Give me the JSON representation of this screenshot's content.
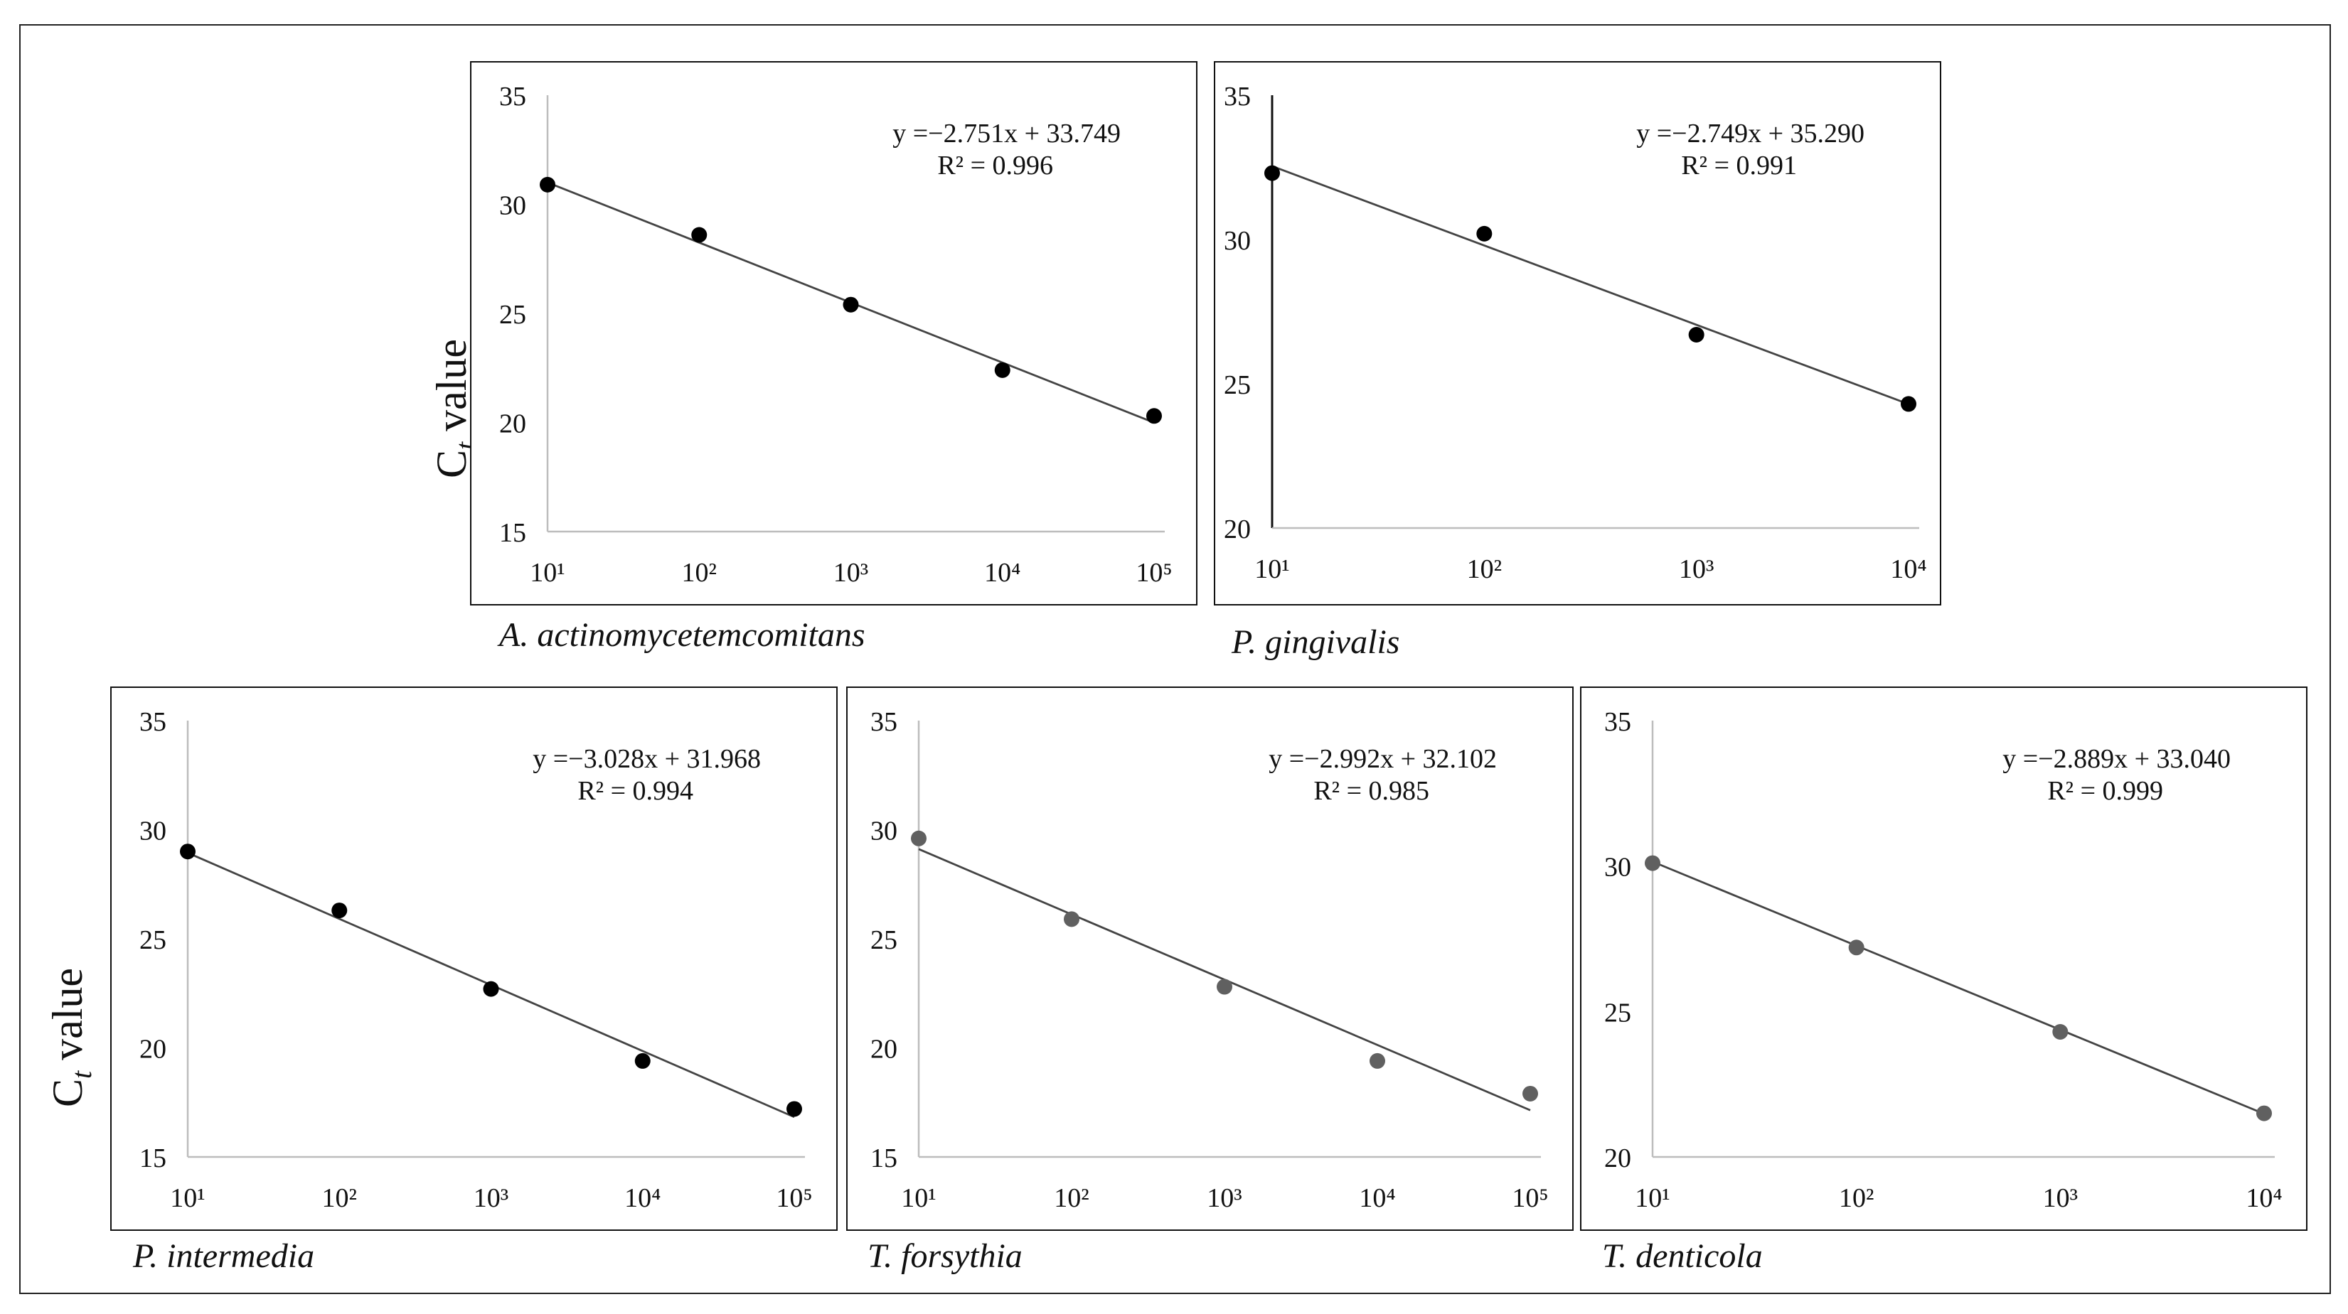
{
  "y_axis_label": {
    "main": "C",
    "subscript": "t",
    "rest": " value"
  },
  "chart_data": [
    {
      "type": "scatter",
      "id": "aa",
      "species": "A. actinomycetemcomitans",
      "equation": "y =−2.751x + 33.749",
      "r_squared": "R² = 0.996",
      "x_ticks": [
        "10¹",
        "10²",
        "10³",
        "10⁴",
        "10⁵"
      ],
      "xlim": [
        1,
        5
      ],
      "ylim": [
        15,
        35
      ],
      "y_ticks": [
        15,
        20,
        25,
        30,
        35
      ],
      "x": [
        1,
        2,
        3,
        4,
        5
      ],
      "y": [
        30.9,
        28.6,
        25.4,
        22.4,
        20.3
      ],
      "trendline": {
        "slope": -2.751,
        "intercept": 33.749
      },
      "point_color": "#000000",
      "axis_dark": false
    },
    {
      "type": "scatter",
      "id": "pg",
      "species": "P. gingivalis",
      "equation": "y =−2.749x + 35.290",
      "r_squared": "R² = 0.991",
      "x_ticks": [
        "10¹",
        "10²",
        "10³",
        "10⁴"
      ],
      "xlim": [
        1,
        4
      ],
      "ylim": [
        20,
        35
      ],
      "y_ticks": [
        20,
        25,
        30,
        35
      ],
      "x": [
        1,
        2,
        3,
        4
      ],
      "y": [
        32.3,
        30.2,
        26.7,
        24.3
      ],
      "trendline": {
        "slope": -2.749,
        "intercept": 35.29
      },
      "point_color": "#000000",
      "axis_dark": true
    },
    {
      "type": "scatter",
      "id": "pi",
      "species": "P. intermedia",
      "equation": "y =−3.028x + 31.968",
      "r_squared": "R² = 0.994",
      "x_ticks": [
        "10¹",
        "10²",
        "10³",
        "10⁴",
        "10⁵"
      ],
      "xlim": [
        1,
        5
      ],
      "ylim": [
        15,
        35
      ],
      "y_ticks": [
        15,
        20,
        25,
        30,
        35
      ],
      "x": [
        1,
        2,
        3,
        4,
        5
      ],
      "y": [
        29.0,
        26.3,
        22.7,
        19.4,
        17.2
      ],
      "trendline": {
        "slope": -3.028,
        "intercept": 31.968
      },
      "point_color": "#000000",
      "axis_dark": false
    },
    {
      "type": "scatter",
      "id": "tf",
      "species": "T. forsythia",
      "equation": "y =−2.992x + 32.102",
      "r_squared": "R² = 0.985",
      "x_ticks": [
        "10¹",
        "10²",
        "10³",
        "10⁴",
        "10⁵"
      ],
      "xlim": [
        1,
        5
      ],
      "ylim": [
        15,
        35
      ],
      "y_ticks": [
        15,
        20,
        25,
        30,
        35
      ],
      "x": [
        1,
        2,
        3,
        4,
        5
      ],
      "y": [
        29.6,
        25.9,
        22.8,
        19.4,
        17.9
      ],
      "trendline": {
        "slope": -2.992,
        "intercept": 32.102
      },
      "point_color": "#606060",
      "axis_dark": false
    },
    {
      "type": "scatter",
      "id": "td",
      "species": "T. denticola",
      "equation": "y =−2.889x + 33.040",
      "r_squared": "R² = 0.999",
      "x_ticks": [
        "10¹",
        "10²",
        "10³",
        "10⁴"
      ],
      "xlim": [
        1,
        4
      ],
      "ylim": [
        20,
        35
      ],
      "y_ticks": [
        20,
        25,
        30,
        35
      ],
      "x": [
        1,
        2,
        3,
        4
      ],
      "y": [
        30.1,
        27.2,
        24.3,
        21.5
      ],
      "trendline": {
        "slope": -2.889,
        "intercept": 33.04
      },
      "point_color": "#606060",
      "axis_dark": false
    }
  ]
}
